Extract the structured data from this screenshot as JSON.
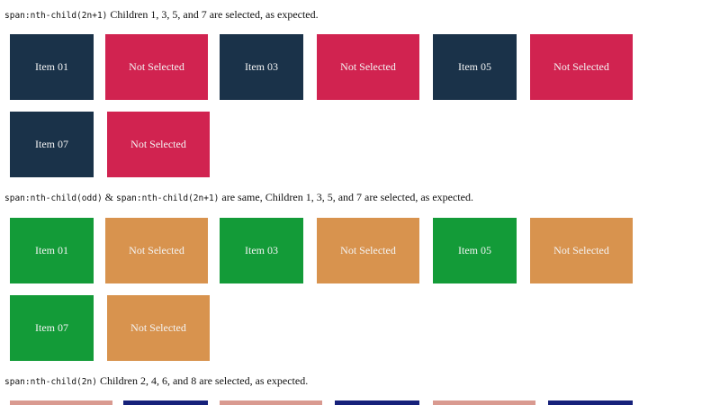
{
  "sections": [
    {
      "selector": "span:nth-child(2n+1)",
      "text": " Children 1, 3, 5, and 7 are selected, as expected.",
      "selected_color": "#1a3249",
      "unselected_color": "#d12350",
      "items": [
        "Item 01",
        "Not Selected",
        "Item 03",
        "Not Selected",
        "Item 05",
        "Not Selected",
        "Item 07",
        "Not Selected"
      ]
    },
    {
      "selector": "span:nth-child(odd)",
      "joiner": " & ",
      "selector2": "span:nth-child(2n+1)",
      "text": " are same, Children 1, 3, 5, and 7 are selected, as expected.",
      "selected_color": "#139b38",
      "unselected_color": "#d8934e",
      "items": [
        "Item 01",
        "Not Selected",
        "Item 03",
        "Not Selected",
        "Item 05",
        "Not Selected",
        "Item 07",
        "Not Selected"
      ]
    },
    {
      "selector": "span:nth-child(2n)",
      "text": " Children 2, 4, 6, and 8 are selected, as expected.",
      "selected_color": "#16217a",
      "unselected_color": "#d99a90"
    }
  ]
}
